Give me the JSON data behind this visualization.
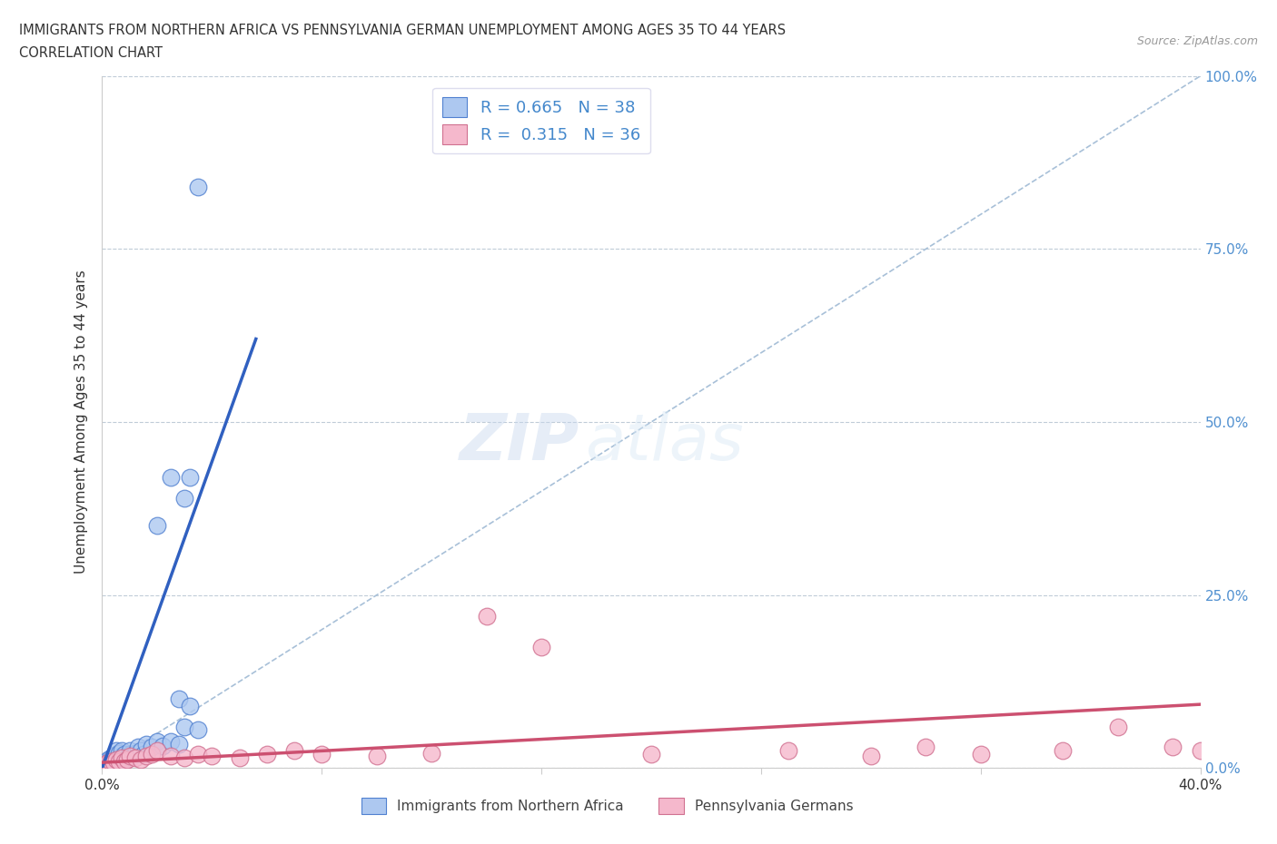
{
  "title_line1": "IMMIGRANTS FROM NORTHERN AFRICA VS PENNSYLVANIA GERMAN UNEMPLOYMENT AMONG AGES 35 TO 44 YEARS",
  "title_line2": "CORRELATION CHART",
  "source": "Source: ZipAtlas.com",
  "ylabel": "Unemployment Among Ages 35 to 44 years",
  "yticks": [
    0.0,
    0.25,
    0.5,
    0.75,
    1.0
  ],
  "ytick_labels": [
    "0.0%",
    "25.0%",
    "50.0%",
    "75.0%",
    "100.0%"
  ],
  "xmin": 0.0,
  "xmax": 0.4,
  "ymin": 0.0,
  "ymax": 1.0,
  "blue_R": 0.665,
  "blue_N": 38,
  "pink_R": 0.315,
  "pink_N": 36,
  "blue_color": "#adc8f0",
  "blue_edge_color": "#5080d0",
  "blue_line_color": "#3060c0",
  "pink_color": "#f5b8cc",
  "pink_edge_color": "#d07090",
  "pink_line_color": "#cc5070",
  "ref_line_color": "#a8c0d8",
  "watermark_zip": "ZIP",
  "watermark_atlas": "atlas",
  "legend_label_blue": "Immigrants from Northern Africa",
  "legend_label_pink": "Pennsylvania Germans",
  "blue_scatter_x": [
    0.001,
    0.002,
    0.002,
    0.003,
    0.003,
    0.004,
    0.004,
    0.005,
    0.005,
    0.005,
    0.006,
    0.006,
    0.007,
    0.007,
    0.008,
    0.009,
    0.01,
    0.01,
    0.011,
    0.012,
    0.013,
    0.014,
    0.015,
    0.016,
    0.018,
    0.02,
    0.022,
    0.025,
    0.028,
    0.03,
    0.032,
    0.035,
    0.02,
    0.025,
    0.028,
    0.032,
    0.03,
    0.035
  ],
  "blue_scatter_y": [
    0.005,
    0.008,
    0.012,
    0.01,
    0.015,
    0.008,
    0.018,
    0.01,
    0.02,
    0.025,
    0.015,
    0.022,
    0.018,
    0.025,
    0.02,
    0.015,
    0.02,
    0.025,
    0.018,
    0.022,
    0.03,
    0.025,
    0.02,
    0.035,
    0.03,
    0.038,
    0.032,
    0.038,
    0.035,
    0.39,
    0.42,
    0.84,
    0.35,
    0.42,
    0.1,
    0.09,
    0.06,
    0.055
  ],
  "pink_scatter_x": [
    0.001,
    0.002,
    0.003,
    0.004,
    0.005,
    0.006,
    0.007,
    0.008,
    0.009,
    0.01,
    0.012,
    0.014,
    0.016,
    0.018,
    0.02,
    0.025,
    0.03,
    0.035,
    0.04,
    0.05,
    0.06,
    0.07,
    0.08,
    0.1,
    0.12,
    0.14,
    0.16,
    0.2,
    0.25,
    0.28,
    0.3,
    0.32,
    0.35,
    0.37,
    0.39,
    0.4
  ],
  "pink_scatter_y": [
    0.005,
    0.008,
    0.01,
    0.008,
    0.012,
    0.01,
    0.015,
    0.01,
    0.012,
    0.018,
    0.015,
    0.012,
    0.018,
    0.02,
    0.025,
    0.018,
    0.015,
    0.02,
    0.018,
    0.015,
    0.02,
    0.025,
    0.02,
    0.018,
    0.022,
    0.22,
    0.175,
    0.02,
    0.025,
    0.018,
    0.03,
    0.02,
    0.025,
    0.06,
    0.03,
    0.025
  ],
  "blue_trend_x": [
    0.0,
    0.056
  ],
  "blue_trend_y": [
    0.0,
    0.62
  ],
  "pink_trend_x": [
    0.0,
    0.4
  ],
  "pink_trend_y": [
    0.008,
    0.092
  ],
  "ref_line_x": [
    0.0,
    0.4
  ],
  "ref_line_y": [
    0.0,
    1.0
  ]
}
